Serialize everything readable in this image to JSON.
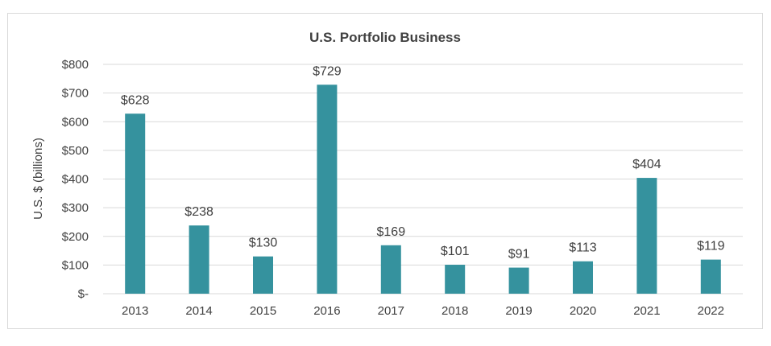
{
  "chart_data": {
    "type": "bar",
    "title": "U.S. Portfolio  Business",
    "xlabel": "",
    "ylabel": "U.S. $ (billions)",
    "categories": [
      "2013",
      "2014",
      "2015",
      "2016",
      "2017",
      "2018",
      "2019",
      "2020",
      "2021",
      "2022"
    ],
    "values": [
      628,
      238,
      130,
      729,
      169,
      101,
      91,
      113,
      404,
      119
    ],
    "data_labels": [
      "$628",
      "$238",
      "$130",
      "$729",
      "$169",
      "$101",
      "$91",
      "$113",
      "$404",
      "$119"
    ],
    "y_ticks": [
      0,
      100,
      200,
      300,
      400,
      500,
      600,
      700,
      800
    ],
    "y_tick_labels": [
      "$-",
      "$100",
      "$200",
      "$300",
      "$400",
      "$500",
      "$600",
      "$700",
      "$800"
    ],
    "ylim": [
      0,
      800
    ],
    "grid": true,
    "legend": "none",
    "bar_color": "#35929e",
    "grid_color": "#d9d9d9"
  }
}
